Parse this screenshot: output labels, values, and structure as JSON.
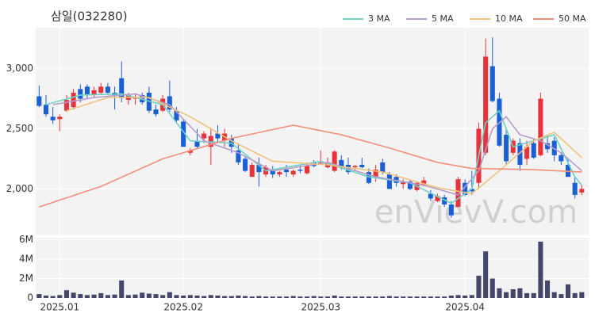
{
  "chart_data": {
    "type": "candlestick",
    "title": "삼일(032280)",
    "watermark": "enVievV.com",
    "up_color": "#e8323c",
    "down_color": "#1a5fd4",
    "xlim": [
      -0.5,
      80
    ],
    "xticks": [
      {
        "value": 3,
        "label": "2025.01"
      },
      {
        "value": 21,
        "label": "2025.02"
      },
      {
        "value": 41,
        "label": "2025.03"
      },
      {
        "value": 62,
        "label": "2025.04"
      }
    ],
    "ylim": [
      1620,
      3340
    ],
    "yticks": [
      {
        "value": 2000,
        "label": "2,000"
      },
      {
        "value": 2500,
        "label": "2,500"
      },
      {
        "value": 3000,
        "label": "3,000"
      }
    ],
    "grid": true,
    "open": [
      2770,
      2700,
      2600,
      2580,
      2650,
      2680,
      2830,
      2850,
      2780,
      2800,
      2850,
      2800,
      2920,
      2740,
      2750,
      2780,
      2800,
      2660,
      2650,
      2770,
      2650,
      2560,
      2300,
      2400,
      2420,
      2350,
      2460,
      2400,
      2420,
      2320,
      2250,
      2100,
      2200,
      2120,
      2160,
      2120,
      2160,
      2120,
      2160,
      2130,
      2220,
      2220,
      2180,
      2150,
      2240,
      2200,
      2180,
      2200,
      2140,
      2100,
      2220,
      2120,
      2100,
      2040,
      2060,
      1990,
      2030,
      1960,
      1900,
      1930,
      1870,
      1850,
      2050,
      2000,
      2050,
      2300,
      3020,
      2750,
      2450,
      2300,
      2380,
      2250,
      2380,
      2280,
      2380,
      2400,
      2280,
      2200,
      2050,
      1970
    ],
    "high": [
      2860,
      2780,
      2680,
      2620,
      2780,
      2830,
      2870,
      2870,
      2850,
      2880,
      2880,
      2850,
      3060,
      2800,
      2790,
      2800,
      2850,
      2700,
      2780,
      2900,
      2680,
      2580,
      2340,
      2500,
      2480,
      2500,
      2530,
      2500,
      2450,
      2380,
      2270,
      2220,
      2260,
      2200,
      2190,
      2150,
      2200,
      2160,
      2200,
      2220,
      2240,
      2320,
      2260,
      2320,
      2280,
      2260,
      2200,
      2260,
      2170,
      2200,
      2250,
      2140,
      2120,
      2080,
      2080,
      2060,
      2100,
      1990,
      1960,
      1950,
      1900,
      2100,
      2080,
      2150,
      2550,
      3250,
      3260,
      2800,
      2500,
      2420,
      2420,
      2400,
      2420,
      2800,
      2450,
      2430,
      2300,
      2250,
      2100,
      2030
    ],
    "low": [
      2680,
      2600,
      2540,
      2480,
      2640,
      2660,
      2720,
      2750,
      2760,
      2780,
      2790,
      2660,
      2720,
      2700,
      2700,
      2700,
      2630,
      2600,
      2640,
      2640,
      2550,
      2350,
      2280,
      2340,
      2380,
      2200,
      2380,
      2350,
      2300,
      2200,
      2140,
      2100,
      2020,
      2100,
      2090,
      2100,
      2100,
      2100,
      2130,
      2120,
      2180,
      2200,
      2170,
      2140,
      2160,
      2120,
      2150,
      2170,
      2040,
      2060,
      2120,
      2000,
      2020,
      2000,
      1990,
      1980,
      2020,
      1900,
      1890,
      1850,
      1760,
      1850,
      1940,
      1950,
      2000,
      2280,
      2720,
      2350,
      2200,
      2280,
      2150,
      2200,
      2250,
      2270,
      2300,
      2230,
      2200,
      2100,
      1920,
      1950
    ],
    "close": [
      2690,
      2620,
      2570,
      2600,
      2740,
      2800,
      2750,
      2780,
      2820,
      2850,
      2800,
      2780,
      2760,
      2780,
      2760,
      2720,
      2650,
      2620,
      2750,
      2660,
      2570,
      2350,
      2320,
      2350,
      2460,
      2440,
      2420,
      2460,
      2350,
      2220,
      2150,
      2200,
      2140,
      2180,
      2120,
      2140,
      2140,
      2150,
      2150,
      2190,
      2190,
      2220,
      2220,
      2310,
      2180,
      2140,
      2190,
      2180,
      2050,
      2160,
      2140,
      2000,
      2050,
      2060,
      2000,
      2050,
      2070,
      1920,
      1940,
      1870,
      1780,
      2080,
      1950,
      1980,
      2500,
      3100,
      2730,
      2360,
      2230,
      2400,
      2200,
      2350,
      2260,
      2750,
      2330,
      2280,
      2230,
      2100,
      1950,
      2000
    ],
    "series": [
      {
        "name": "3 MA",
        "color": "#6dd3c5",
        "x": [
          1,
          6,
          12,
          18,
          22,
          28,
          33,
          41,
          48,
          54,
          60,
          63,
          65,
          67,
          69,
          72,
          75,
          78,
          79
        ],
        "values": [
          2700,
          2780,
          2790,
          2700,
          2400,
          2380,
          2150,
          2230,
          2100,
          2050,
          1880,
          2000,
          2550,
          2650,
          2350,
          2400,
          2450,
          2100,
          2030
        ]
      },
      {
        "name": "5 MA",
        "color": "#b79bcb",
        "x": [
          2,
          8,
          14,
          19,
          24,
          29,
          34,
          42,
          49,
          56,
          61,
          64,
          66,
          68,
          70,
          73,
          76,
          79
        ],
        "values": [
          2700,
          2760,
          2790,
          2700,
          2400,
          2300,
          2150,
          2220,
          2100,
          2030,
          1950,
          2150,
          2500,
          2600,
          2450,
          2400,
          2300,
          2150
        ]
      },
      {
        "name": "10 MA",
        "color": "#f1c27d",
        "x": [
          4,
          10,
          16,
          22,
          28,
          34,
          42,
          50,
          58,
          63,
          67,
          72,
          75,
          79
        ],
        "values": [
          2650,
          2760,
          2760,
          2600,
          2400,
          2230,
          2200,
          2140,
          2010,
          1960,
          2150,
          2400,
          2470,
          2260
        ]
      },
      {
        "name": "50 MA",
        "color": "#f4907a",
        "x": [
          0,
          9,
          18,
          28,
          37,
          44,
          51,
          58,
          63,
          72,
          79
        ],
        "values": [
          1850,
          2020,
          2250,
          2420,
          2530,
          2450,
          2340,
          2220,
          2170,
          2160,
          2140
        ]
      }
    ],
    "volume": {
      "color": "#44466a",
      "ylim": [
        0,
        6200000
      ],
      "yticks": [
        0,
        {
          "value": 2000000,
          "label": "2M"
        },
        {
          "value": 4000000,
          "label": "4M"
        },
        {
          "value": 6000000,
          "label": "6M"
        }
      ],
      "values": [
        400000,
        250000,
        200000,
        300000,
        800000,
        550000,
        400000,
        300000,
        350000,
        500000,
        300000,
        350000,
        1800000,
        300000,
        350000,
        550000,
        450000,
        400000,
        300000,
        600000,
        300000,
        250000,
        300000,
        250000,
        200000,
        300000,
        250000,
        200000,
        200000,
        250000,
        200000,
        150000,
        200000,
        150000,
        150000,
        150000,
        150000,
        200000,
        150000,
        150000,
        200000,
        150000,
        150000,
        250000,
        150000,
        150000,
        150000,
        150000,
        150000,
        150000,
        150000,
        200000,
        150000,
        150000,
        150000,
        150000,
        150000,
        150000,
        150000,
        150000,
        250000,
        300000,
        250000,
        300000,
        2300000,
        4800000,
        2000000,
        1000000,
        600000,
        900000,
        1000000,
        500000,
        500000,
        5800000,
        1800000,
        600000,
        400000,
        1400000,
        500000,
        600000
      ]
    }
  }
}
